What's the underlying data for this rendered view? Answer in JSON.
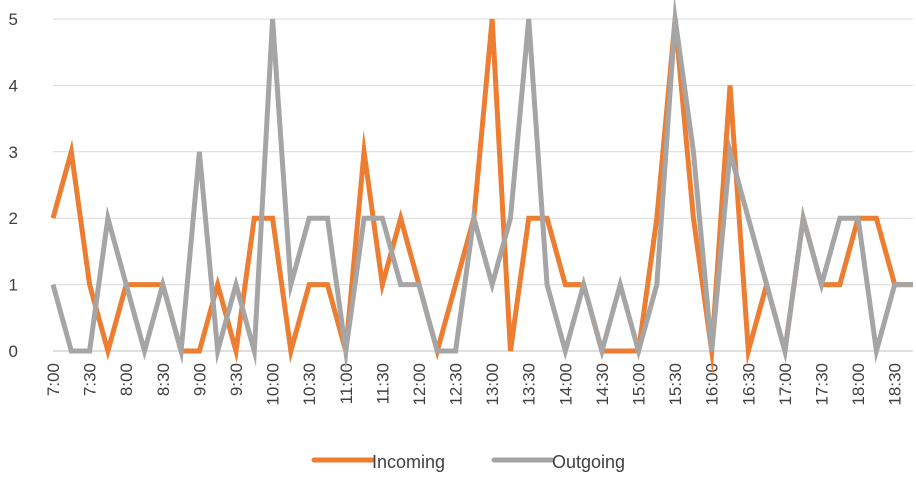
{
  "chart_data": {
    "type": "line",
    "title": "",
    "xlabel": "",
    "ylabel": "",
    "ylim": [
      0,
      5
    ],
    "yticks": [
      0,
      1,
      2,
      3,
      4,
      5
    ],
    "grid": "horizontal",
    "legend_position": "bottom",
    "x": [
      "7:00",
      "7:15",
      "7:30",
      "7:45",
      "8:00",
      "8:15",
      "8:30",
      "8:45",
      "9:00",
      "9:15",
      "9:30",
      "9:45",
      "10:00",
      "10:15",
      "10:30",
      "10:45",
      "11:00",
      "11:15",
      "11:30",
      "11:45",
      "12:00",
      "12:15",
      "12:30",
      "12:45",
      "13:00",
      "13:15",
      "13:30",
      "13:45",
      "14:00",
      "14:15",
      "14:30",
      "14:45",
      "15:00",
      "15:15",
      "15:30",
      "15:45",
      "16:00",
      "16:15",
      "16:30",
      "16:45",
      "17:00",
      "17:15",
      "17:30",
      "17:45",
      "18:00",
      "18:15",
      "18:30",
      "18:45"
    ],
    "x_tick_labels": [
      "7:00",
      "7:30",
      "8:00",
      "8:30",
      "9:00",
      "9:30",
      "10:00",
      "10:30",
      "11:00",
      "11:30",
      "12:00",
      "12:30",
      "13:00",
      "13:30",
      "14:00",
      "14:30",
      "15:00",
      "15:30",
      "16:00",
      "16:30",
      "17:00",
      "17:30",
      "18:00",
      "18:30"
    ],
    "series": [
      {
        "name": "Incoming",
        "color": "#ED7D31",
        "values": [
          2,
          3,
          1,
          0,
          1,
          1,
          1,
          0,
          0,
          1,
          0,
          2,
          2,
          0,
          1,
          1,
          0,
          3,
          1,
          2,
          1,
          0,
          1,
          2,
          5,
          0,
          2,
          2,
          1,
          1,
          0,
          0,
          0,
          2,
          5,
          2,
          0,
          4,
          0,
          1,
          0,
          2,
          1,
          1,
          2,
          2,
          1,
          1
        ]
      },
      {
        "name": "Outgoing",
        "color": "#A5A5A5",
        "values": [
          1,
          0,
          0,
          2,
          1,
          0,
          1,
          0,
          3,
          0,
          1,
          0,
          5,
          1,
          2,
          2,
          0,
          2,
          2,
          1,
          1,
          0,
          0,
          2,
          1,
          2,
          5,
          1,
          0,
          1,
          0,
          1,
          0,
          1,
          5,
          3,
          0,
          3,
          2,
          1,
          0,
          2,
          1,
          2,
          2,
          0,
          1,
          1
        ]
      }
    ]
  }
}
